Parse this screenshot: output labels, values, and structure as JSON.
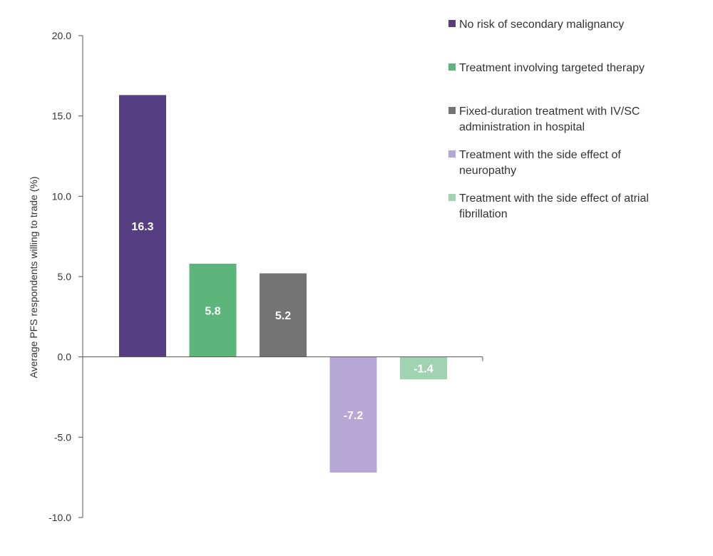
{
  "chart_data": {
    "type": "bar",
    "title": "",
    "xlabel": "",
    "ylabel": "Average PFS respondents willing to trade (%)",
    "ylim": [
      -10,
      20
    ],
    "yticks": [
      20,
      15,
      10,
      5,
      0,
      -5,
      -10
    ],
    "ytick_labels": [
      "20.0",
      "15.0",
      "10.0",
      "5.0",
      "0.0",
      "-5.0",
      "-10.0"
    ],
    "grid": false,
    "legend_position": "top-right",
    "categories": [
      "No risk of secondary malignancy",
      "Treatment involving targeted therapy",
      "Fixed-duration treatment with IV/SC administration in hospital",
      "Treatment with the side effect of neuropathy",
      "Treatment with the side effect of atrial fibrillation"
    ],
    "values": [
      16.3,
      5.8,
      5.2,
      -7.2,
      -1.4
    ],
    "value_labels": [
      "16.3",
      "5.8",
      "5.2",
      "-7.2",
      "-1.4"
    ],
    "colors": [
      "#553e82",
      "#5cb57a",
      "#747474",
      "#b7a7d7",
      "#9fd3b2"
    ],
    "legend": [
      {
        "lines": [
          "No risk of secondary malignancy"
        ]
      },
      {
        "lines": [
          "Treatment involving targeted therapy"
        ]
      },
      {
        "lines": [
          "Fixed-duration treatment with IV/SC",
          "administration in hospital"
        ]
      },
      {
        "lines": [
          "Treatment with the side effect of",
          "neuropathy"
        ]
      },
      {
        "lines": [
          "Treatment with the side effect of atrial",
          "fibrillation"
        ]
      }
    ]
  }
}
